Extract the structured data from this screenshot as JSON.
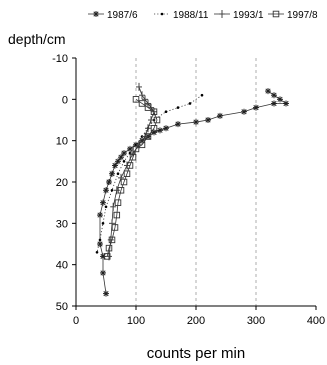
{
  "chart_data": {
    "type": "scatter",
    "title": "",
    "xlabel": "counts per min",
    "ylabel": "depth/cm",
    "xlim": [
      0,
      400
    ],
    "ylim": [
      -10,
      50
    ],
    "y_inverted": true,
    "x_ticks": [
      "0",
      "100",
      "200",
      "300",
      "400"
    ],
    "y_ticks": [
      "-10",
      "0",
      "10",
      "20",
      "30",
      "40",
      "50"
    ],
    "vertical_gridlines_dashed": [
      100,
      200,
      300
    ],
    "legend_position": "top",
    "series": [
      {
        "name": "1987/6",
        "marker": "star",
        "line": "solid",
        "points": [
          [
            320,
            -2
          ],
          [
            330,
            -1
          ],
          [
            340,
            0
          ],
          [
            350,
            1
          ],
          [
            330,
            1
          ],
          [
            300,
            2
          ],
          [
            280,
            3
          ],
          [
            240,
            4
          ],
          [
            220,
            5
          ],
          [
            200,
            5.5
          ],
          [
            170,
            6
          ],
          [
            150,
            7
          ],
          [
            140,
            7.5
          ],
          [
            130,
            8
          ],
          [
            120,
            9
          ],
          [
            110,
            10
          ],
          [
            100,
            11
          ],
          [
            90,
            12
          ],
          [
            80,
            13
          ],
          [
            75,
            14
          ],
          [
            70,
            15
          ],
          [
            65,
            16
          ],
          [
            60,
            18
          ],
          [
            55,
            20
          ],
          [
            50,
            22
          ],
          [
            45,
            25
          ],
          [
            40,
            28
          ],
          [
            40,
            35
          ],
          [
            45,
            38
          ],
          [
            45,
            42
          ],
          [
            50,
            47
          ]
        ]
      },
      {
        "name": "1988/11",
        "marker": "dot",
        "line": "dotted",
        "points": [
          [
            210,
            -1
          ],
          [
            190,
            1
          ],
          [
            170,
            2
          ],
          [
            150,
            3
          ],
          [
            130,
            5
          ],
          [
            120,
            7
          ],
          [
            110,
            9
          ],
          [
            100,
            11
          ],
          [
            90,
            13
          ],
          [
            80,
            15
          ],
          [
            70,
            18
          ],
          [
            60,
            22
          ],
          [
            50,
            26
          ],
          [
            45,
            30
          ],
          [
            40,
            34
          ],
          [
            35,
            37
          ]
        ]
      },
      {
        "name": "1993/1",
        "marker": "plus",
        "line": "solid",
        "points": [
          [
            105,
            -3
          ],
          [
            110,
            -1
          ],
          [
            115,
            0
          ],
          [
            120,
            1
          ],
          [
            125,
            2
          ],
          [
            130,
            3
          ],
          [
            125,
            5
          ],
          [
            120,
            7
          ],
          [
            115,
            9
          ],
          [
            105,
            11
          ],
          [
            95,
            13
          ],
          [
            85,
            16
          ],
          [
            75,
            19
          ],
          [
            68,
            22
          ],
          [
            62,
            26
          ],
          [
            60,
            30
          ],
          [
            58,
            34
          ],
          [
            55,
            38
          ]
        ]
      },
      {
        "name": "1997/8",
        "marker": "square",
        "line": "solid",
        "points": [
          [
            100,
            0
          ],
          [
            110,
            1
          ],
          [
            120,
            2
          ],
          [
            130,
            3
          ],
          [
            135,
            5
          ],
          [
            130,
            7
          ],
          [
            120,
            9
          ],
          [
            110,
            11
          ],
          [
            100,
            12
          ],
          [
            95,
            14
          ],
          [
            90,
            16
          ],
          [
            85,
            18
          ],
          [
            80,
            20
          ],
          [
            75,
            22
          ],
          [
            70,
            25
          ],
          [
            68,
            28
          ],
          [
            65,
            31
          ],
          [
            60,
            34
          ],
          [
            55,
            36
          ],
          [
            52,
            38
          ]
        ]
      }
    ]
  }
}
